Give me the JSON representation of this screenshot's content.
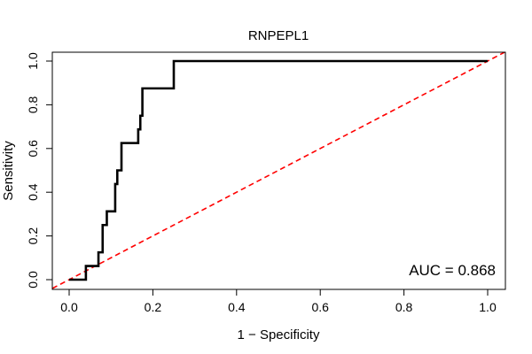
{
  "chart_data": {
    "type": "line",
    "title": "RNPEPL1",
    "xlabel": "1 − Specificity",
    "ylabel": "Sensitivity",
    "xlim": [
      0,
      1
    ],
    "ylim": [
      0,
      1
    ],
    "x_ticks": [
      0.0,
      0.2,
      0.4,
      0.6,
      0.8,
      1.0
    ],
    "x_tick_labels": [
      "0.0",
      "0.2",
      "0.4",
      "0.6",
      "0.8",
      "1.0"
    ],
    "y_ticks": [
      0.0,
      0.2,
      0.4,
      0.6,
      0.8,
      1.0
    ],
    "y_tick_labels": [
      "0.0",
      "0.2",
      "0.4",
      "0.6",
      "0.8",
      "1.0"
    ],
    "grid": false,
    "annotation": "AUC = 0.868",
    "series": [
      {
        "name": "ROC curve",
        "color": "#000000",
        "style": "solid",
        "x": [
          0.0,
          0.04,
          0.04,
          0.05,
          0.05,
          0.07,
          0.07,
          0.08,
          0.08,
          0.09,
          0.09,
          0.11,
          0.11,
          0.115,
          0.115,
          0.125,
          0.125,
          0.165,
          0.165,
          0.17,
          0.17,
          0.175,
          0.175,
          0.25,
          0.25,
          1.0
        ],
        "y": [
          0.0,
          0.0,
          0.0625,
          0.0625,
          0.0625,
          0.0625,
          0.125,
          0.125,
          0.25,
          0.25,
          0.3125,
          0.3125,
          0.4375,
          0.4375,
          0.5,
          0.5,
          0.625,
          0.625,
          0.6875,
          0.6875,
          0.75,
          0.75,
          0.875,
          0.875,
          1.0,
          1.0
        ]
      },
      {
        "name": "Reference",
        "color": "#ff0000",
        "style": "dashed",
        "x": [
          -0.04,
          1.04
        ],
        "y": [
          -0.04,
          1.04
        ]
      }
    ]
  }
}
